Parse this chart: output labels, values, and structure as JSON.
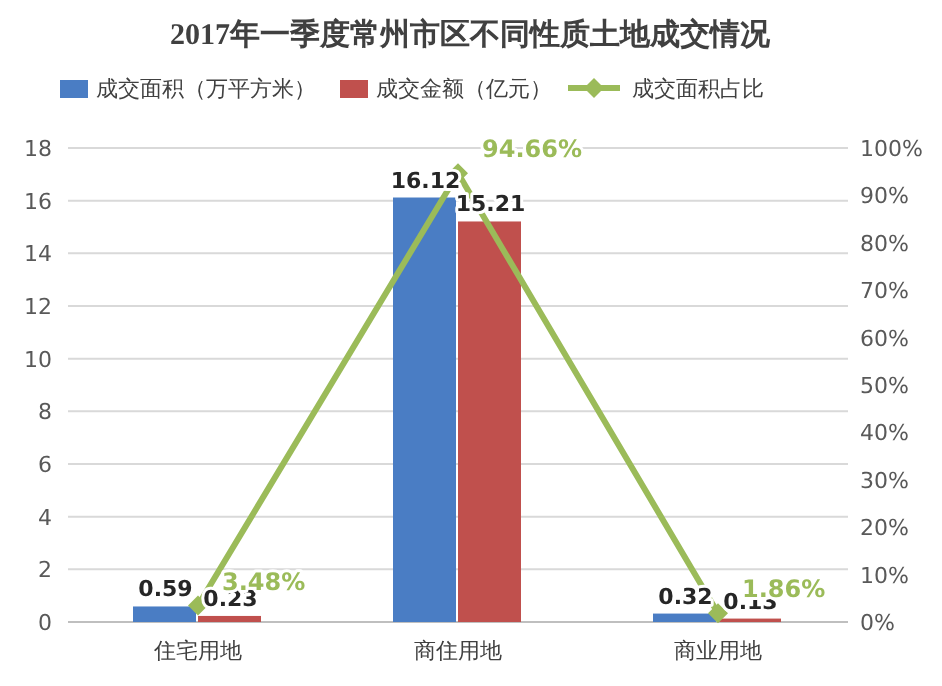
{
  "chart_data": {
    "type": "bar",
    "title": "2017年一季度常州市区不同性质土地成交情况",
    "categories": [
      "住宅用地",
      "商住用地",
      "商业用地"
    ],
    "series": [
      {
        "name": "成交面积（万平方米）",
        "color": "#4a7dc4",
        "values": [
          0.59,
          16.12,
          0.32
        ],
        "value_labels": [
          "0.59",
          "16.12",
          "0.32"
        ]
      },
      {
        "name": "成交金额（亿元）",
        "color": "#c0504d",
        "values": [
          0.23,
          15.21,
          0.13
        ],
        "value_labels": [
          "0.23",
          "15.21",
          "0.13"
        ]
      },
      {
        "name": "成交面积占比",
        "type": "line",
        "axis": "y2",
        "color": "#9bbb59",
        "marker": "diamond",
        "line_style": "solid",
        "values": [
          3.48,
          94.66,
          1.86
        ],
        "value_labels": [
          "3.48%",
          "94.66%",
          "1.86%"
        ]
      }
    ],
    "ylim": [
      0,
      18
    ],
    "yticks": [
      0,
      2,
      4,
      6,
      8,
      10,
      12,
      14,
      16,
      18
    ],
    "y2lim": [
      0,
      100
    ],
    "y2ticks": [
      {
        "value": 0,
        "label": "0%"
      },
      {
        "value": 10,
        "label": "10%"
      },
      {
        "value": 20,
        "label": "20%"
      },
      {
        "value": 30,
        "label": "30%"
      },
      {
        "value": 40,
        "label": "40%"
      },
      {
        "value": 50,
        "label": "50%"
      },
      {
        "value": 60,
        "label": "60%"
      },
      {
        "value": 70,
        "label": "70%"
      },
      {
        "value": 80,
        "label": "80%"
      },
      {
        "value": 90,
        "label": "90%"
      },
      {
        "value": 100,
        "label": "100%"
      }
    ],
    "grid": "y",
    "legend": "top"
  }
}
